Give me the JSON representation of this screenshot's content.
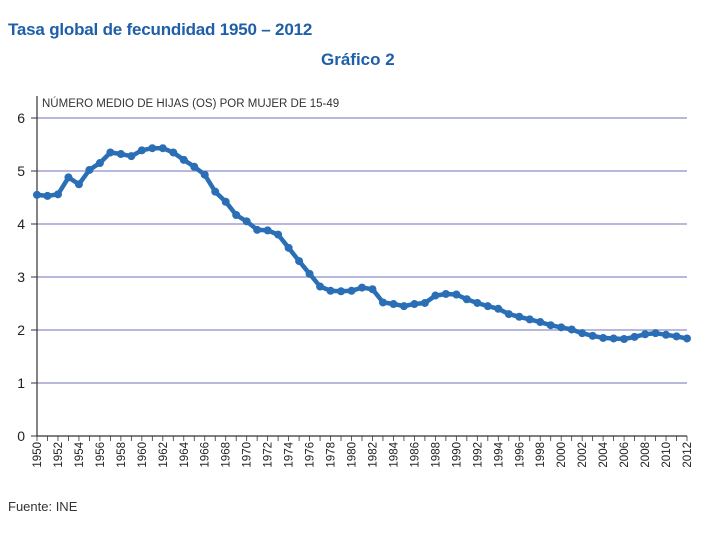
{
  "header": {
    "title": "Tasa global de fecundidad 1950 – 2012",
    "subtitle": "Gráfico 2"
  },
  "footer": {
    "source": "Fuente: INE"
  },
  "colors": {
    "series": "#2a6fb5",
    "title": "#1f5fa8",
    "grid": "#8a8fc8",
    "axis": "#333333"
  },
  "chart_data": {
    "type": "line",
    "title": "",
    "ylabel": "NÚMERO MEDIO DE HIJAS (OS) POR MUJER DE 15-49",
    "xlabel": "",
    "ylim": [
      0,
      6
    ],
    "yticks": [
      0,
      1,
      2,
      3,
      4,
      5,
      6
    ],
    "xlim": [
      1950,
      2012
    ],
    "xtick_labels": [
      "1950",
      "1952",
      "1954",
      "1956",
      "1958",
      "1960",
      "1962",
      "1964",
      "1966",
      "1968",
      "1970",
      "1972",
      "1974",
      "1976",
      "1978",
      "1980",
      "1982",
      "1984",
      "1986",
      "1988",
      "1990",
      "1992",
      "1994",
      "1996",
      "1998",
      "2000",
      "2002",
      "2004",
      "2006",
      "2008",
      "2010",
      "2012"
    ],
    "grid": true,
    "legend": "none",
    "x": [
      1950,
      1951,
      1952,
      1953,
      1954,
      1955,
      1956,
      1957,
      1958,
      1959,
      1960,
      1961,
      1962,
      1963,
      1964,
      1965,
      1966,
      1967,
      1968,
      1969,
      1970,
      1971,
      1972,
      1973,
      1974,
      1975,
      1976,
      1977,
      1978,
      1979,
      1980,
      1981,
      1982,
      1983,
      1984,
      1985,
      1986,
      1987,
      1988,
      1989,
      1990,
      1991,
      1992,
      1993,
      1994,
      1995,
      1996,
      1997,
      1998,
      1999,
      2000,
      2001,
      2002,
      2003,
      2004,
      2005,
      2006,
      2007,
      2008,
      2009,
      2010,
      2011,
      2012
    ],
    "series": [
      {
        "values": [
          4.55,
          4.53,
          4.56,
          4.88,
          4.75,
          5.02,
          5.15,
          5.35,
          5.32,
          5.28,
          5.39,
          5.43,
          5.43,
          5.35,
          5.21,
          5.08,
          4.93,
          4.61,
          4.42,
          4.17,
          4.05,
          3.89,
          3.88,
          3.8,
          3.55,
          3.3,
          3.06,
          2.82,
          2.74,
          2.73,
          2.74,
          2.8,
          2.77,
          2.52,
          2.49,
          2.45,
          2.49,
          2.51,
          2.65,
          2.68,
          2.67,
          2.58,
          2.51,
          2.45,
          2.4,
          2.3,
          2.25,
          2.2,
          2.15,
          2.09,
          2.05,
          2.01,
          1.94,
          1.89,
          1.85,
          1.84,
          1.83,
          1.87,
          1.92,
          1.94,
          1.91,
          1.88,
          1.84
        ]
      }
    ]
  }
}
